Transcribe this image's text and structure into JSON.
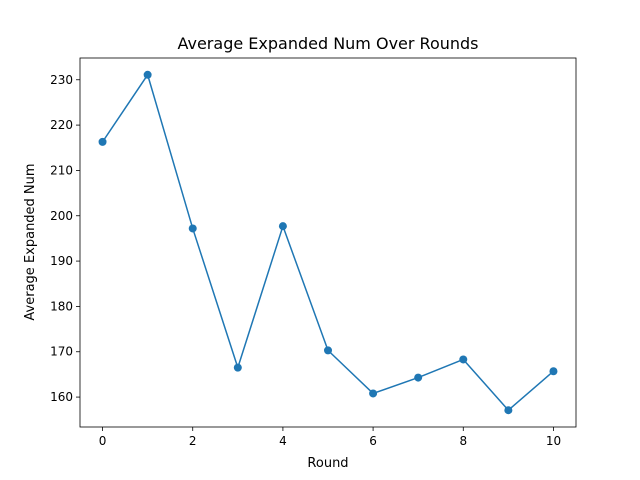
{
  "chart_data": {
    "type": "line",
    "title": "Average Expanded Num Over Rounds",
    "xlabel": "Round",
    "ylabel": "Average Expanded Num",
    "xlim": [
      -0.5,
      10.5
    ],
    "ylim": [
      153.4,
      234.8
    ],
    "xticks": [
      0,
      2,
      4,
      6,
      8,
      10
    ],
    "yticks": [
      160,
      170,
      180,
      190,
      200,
      210,
      220,
      230
    ],
    "grid": false,
    "color": "#1f77b4",
    "series": [
      {
        "x": [
          0,
          1,
          2,
          3,
          4,
          5,
          6,
          7,
          8,
          9,
          10
        ],
        "values": [
          216.3,
          231.1,
          197.2,
          166.5,
          197.7,
          170.3,
          160.8,
          164.3,
          168.3,
          157.1,
          165.7
        ],
        "marker": "circle"
      }
    ]
  }
}
